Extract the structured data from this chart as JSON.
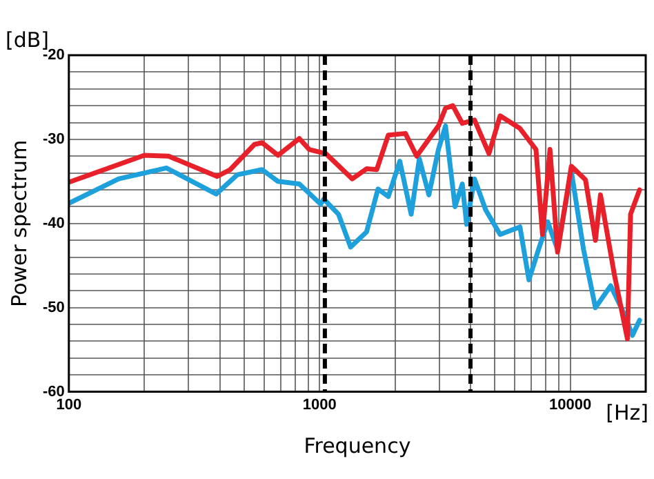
{
  "chart_data": {
    "type": "line",
    "xlabel": "Frequency",
    "ylabel": "Power spectrum",
    "annotations": [
      "[dB]",
      "[Hz]"
    ],
    "log": "x",
    "grid": true,
    "legend": false,
    "marker": "none",
    "line_style": "solid",
    "xlim": [
      100,
      20000
    ],
    "ylim": [
      -60,
      -20
    ],
    "xticks": [
      100,
      {
        "value": 200,
        "label": null
      },
      {
        "value": 300,
        "label": null
      },
      {
        "value": 400,
        "label": null
      },
      {
        "value": 500,
        "label": null
      },
      {
        "value": 600,
        "label": null
      },
      {
        "value": 700,
        "label": null
      },
      {
        "value": 800,
        "label": null
      },
      {
        "value": 900,
        "label": null
      },
      1000,
      {
        "value": 2000,
        "label": null
      },
      {
        "value": 3000,
        "label": null
      },
      {
        "value": 4000,
        "label": null
      },
      {
        "value": 5000,
        "label": null
      },
      {
        "value": 6000,
        "label": null
      },
      {
        "value": 7000,
        "label": null
      },
      {
        "value": 8000,
        "label": null
      },
      {
        "value": 9000,
        "label": null
      },
      10000,
      {
        "value": 20000,
        "label": null
      }
    ],
    "yticks": [
      -60,
      {
        "value": -58,
        "label": null
      },
      {
        "value": -56,
        "label": null
      },
      {
        "value": -54,
        "label": null
      },
      {
        "value": -52,
        "label": null
      },
      -50,
      {
        "value": -48,
        "label": null
      },
      {
        "value": -46,
        "label": null
      },
      {
        "value": -44,
        "label": null
      },
      {
        "value": -42,
        "label": null
      },
      -40,
      {
        "value": -38,
        "label": null
      },
      {
        "value": -36,
        "label": null
      },
      {
        "value": -34,
        "label": null
      },
      {
        "value": -32,
        "label": null
      },
      -30,
      {
        "value": -28,
        "label": null
      },
      {
        "value": -26,
        "label": null
      },
      {
        "value": -24,
        "label": null
      },
      {
        "value": -22,
        "label": null
      },
      -20
    ],
    "ref_lines": [
      {
        "axis": "x",
        "value": 1050,
        "label": null,
        "color": "#000000",
        "line_style": "dashed"
      },
      {
        "axis": "x",
        "value": 4000,
        "label": null,
        "color": "#000000",
        "line_style": "dashed"
      }
    ],
    "series": [
      {
        "color": "#e8202a",
        "x": [
          100,
          200,
          250,
          390,
          440,
          550,
          590,
          683,
          830,
          910,
          1060,
          1350,
          1540,
          1690,
          1880,
          2200,
          2440,
          2980,
          3180,
          3400,
          3710,
          4150,
          4740,
          5250,
          6300,
          7300,
          7750,
          8300,
          8900,
          10100,
          11500,
          12600,
          13200,
          15000,
          16900,
          17400,
          18900
        ],
        "values": [
          -35.1,
          -31.9,
          -32,
          -34.4,
          -33.6,
          -30.6,
          -30.4,
          -31.9,
          -29.9,
          -31.2,
          -31.7,
          -34.7,
          -33.5,
          -33.6,
          -29.5,
          -29.3,
          -32,
          -28.4,
          -26.3,
          -26,
          -28.1,
          -27.7,
          -31.7,
          -27.2,
          -28.7,
          -31.2,
          -41.3,
          -31.2,
          -43.4,
          -33.2,
          -34.8,
          -42,
          -36.6,
          -46.1,
          -53.7,
          -38.9,
          -36
        ]
      },
      {
        "color": "#1ea0dc",
        "x": [
          100,
          158,
          245,
          387,
          470,
          590,
          683,
          830,
          1010,
          1040,
          1190,
          1330,
          1540,
          1710,
          1880,
          2090,
          2320,
          2500,
          2730,
          2980,
          3180,
          3470,
          3710,
          3860,
          4150,
          4600,
          5250,
          6300,
          6840,
          7470,
          8130,
          8900,
          10100,
          11300,
          12600,
          14500,
          16500,
          17700,
          18900
        ],
        "values": [
          -37.6,
          -34.7,
          -33.4,
          -36.5,
          -34.2,
          -33.6,
          -35,
          -35.3,
          -37.7,
          -37.1,
          -38.9,
          -42.8,
          -41,
          -35.9,
          -36.8,
          -32.6,
          -38.9,
          -32.3,
          -36.6,
          -31.2,
          -28.4,
          -38,
          -35.3,
          -40.1,
          -34.7,
          -38.4,
          -41.3,
          -40.4,
          -46.7,
          -43.1,
          -39.8,
          -43.1,
          -33.8,
          -43.1,
          -50,
          -47.4,
          -50.9,
          -53.3,
          -51.5
        ]
      }
    ]
  }
}
